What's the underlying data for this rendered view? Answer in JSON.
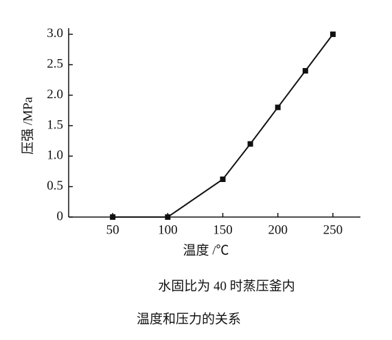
{
  "chart_data": {
    "type": "line",
    "xlabel": "温度 /℃",
    "ylabel": "压强 /MPa",
    "x": [
      50,
      100,
      150,
      175,
      200,
      225,
      250
    ],
    "series": [
      {
        "color": "#111111",
        "values": [
          0,
          0,
          0.62,
          1.2,
          1.8,
          2.4,
          3.0
        ]
      }
    ],
    "xlim": [
      10,
      275
    ],
    "xticks": [
      50,
      100,
      150,
      200,
      250
    ],
    "ylim": [
      0,
      3.1
    ],
    "yticks": [
      {
        "value": 0,
        "label": "0"
      },
      0.5,
      {
        "value": 1,
        "label": "1.0"
      },
      1.5,
      {
        "value": 2,
        "label": "2.0"
      },
      2.5,
      {
        "value": 3,
        "label": "3.0"
      }
    ],
    "caption": [
      "水固比为 40 时蒸压釜内",
      "温度和压力的关系"
    ]
  }
}
